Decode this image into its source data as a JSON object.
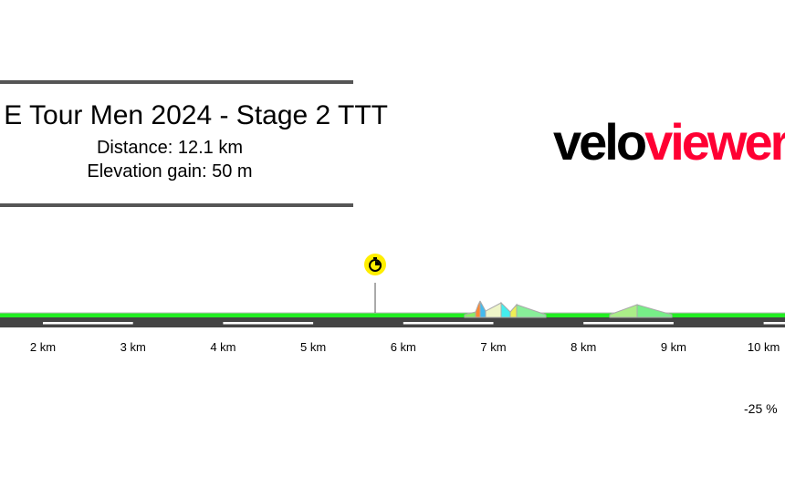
{
  "header": {
    "title": "E Tour Men 2024 - Stage 2 TTT",
    "distance": "Distance: 12.1 km",
    "elevation_gain": "Elevation gain: 50 m"
  },
  "logo": {
    "part1": "velo",
    "part2": "viewer",
    "colors": [
      "#000000",
      "#ff0033"
    ]
  },
  "chart_data": {
    "type": "area",
    "title": "",
    "x_ticks": [
      "2 km",
      "3 km",
      "4 km",
      "5 km",
      "6 km",
      "7 km",
      "8 km",
      "9 km",
      "10 km"
    ],
    "x_tick_values": [
      2,
      3,
      4,
      5,
      6,
      7,
      8,
      9,
      10
    ],
    "markers": [
      {
        "type": "intermediate-time-check",
        "icon": "stopwatch-icon",
        "km": 5.7
      }
    ],
    "gradient_legend_label": "-25 %",
    "colors": {
      "flat": "#22ee22",
      "road": "#444444"
    }
  }
}
